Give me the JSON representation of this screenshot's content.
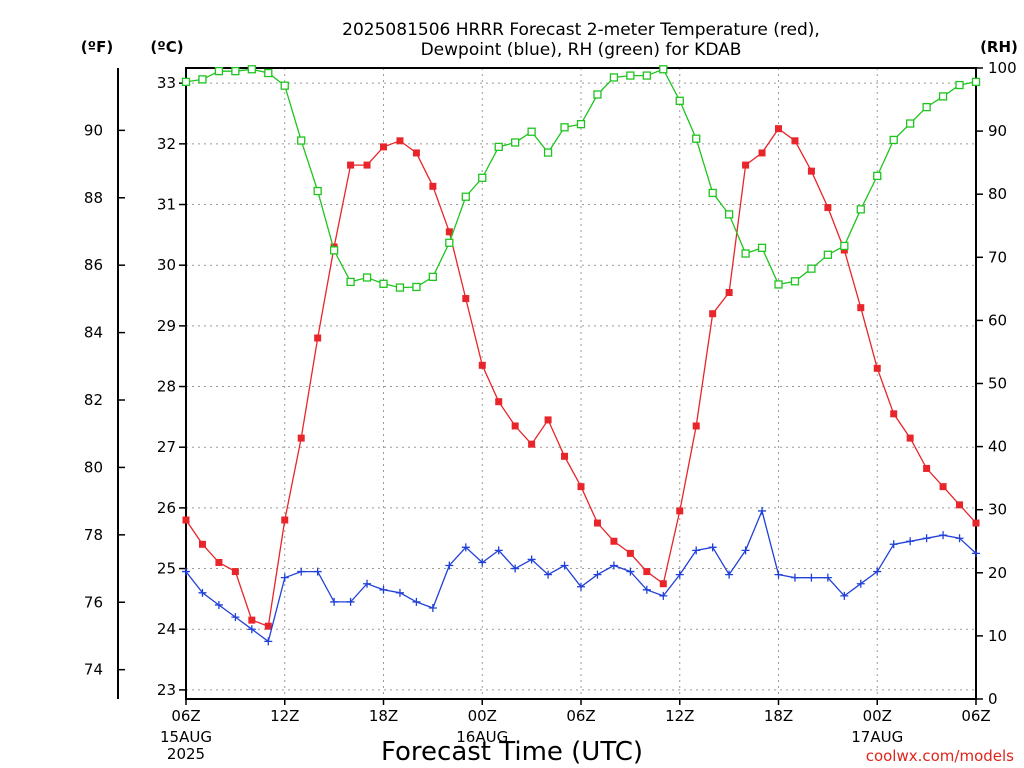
{
  "title_line1": "2025081506 HRRR Forecast 2-meter Temperature (red),",
  "title_line2": "Dewpoint (blue), RH (green) for KDAB",
  "unit_f": "(ºF)",
  "unit_c": "(ºC)",
  "unit_rh": "(RH)",
  "xlabel": "Forecast Time (UTC)",
  "credit": "coolwx.com/models",
  "chart_data": {
    "type": "line",
    "xlabel": "Forecast Time (UTC)",
    "x_unit": "forecast hour from 2025-08-15 06Z",
    "x": [
      0,
      1,
      2,
      3,
      4,
      5,
      6,
      7,
      8,
      9,
      10,
      11,
      12,
      13,
      14,
      15,
      16,
      17,
      18,
      19,
      20,
      21,
      22,
      23,
      24,
      25,
      26,
      27,
      28,
      29,
      30,
      31,
      32,
      33,
      34,
      35,
      36,
      37,
      38,
      39,
      40,
      41,
      42,
      43,
      44,
      45,
      46,
      47,
      48
    ],
    "x_ticks": [
      {
        "hour": 0,
        "label": "06Z",
        "sub": [
          "15AUG",
          "2025"
        ]
      },
      {
        "hour": 6,
        "label": "12Z"
      },
      {
        "hour": 12,
        "label": "18Z"
      },
      {
        "hour": 18,
        "label": "00Z",
        "sub": [
          "16AUG"
        ]
      },
      {
        "hour": 24,
        "label": "06Z"
      },
      {
        "hour": 30,
        "label": "12Z"
      },
      {
        "hour": 36,
        "label": "18Z"
      },
      {
        "hour": 42,
        "label": "00Z",
        "sub": [
          "17AUG"
        ]
      },
      {
        "hour": 48,
        "label": "06Z"
      }
    ],
    "y_left_celsius": {
      "range": [
        22.85,
        33.25
      ],
      "ticks": [
        23,
        24,
        25,
        26,
        27,
        28,
        29,
        30,
        31,
        32,
        33
      ]
    },
    "y_left_fahrenheit": {
      "ticks": [
        74,
        76,
        78,
        80,
        82,
        84,
        86,
        88,
        90
      ]
    },
    "y_right_rh": {
      "range": [
        0,
        100
      ],
      "ticks": [
        0,
        10,
        20,
        30,
        40,
        50,
        60,
        70,
        80,
        90,
        100
      ]
    },
    "grid": true,
    "series": [
      {
        "name": "Temperature",
        "color": "#e8252a",
        "marker": "filled-square",
        "axis": "celsius",
        "values": [
          25.8,
          25.4,
          25.1,
          24.95,
          24.15,
          24.05,
          25.8,
          27.15,
          28.8,
          30.3,
          31.65,
          31.65,
          31.95,
          32.05,
          31.85,
          31.3,
          30.55,
          29.45,
          28.35,
          27.75,
          27.35,
          27.05,
          27.45,
          26.85,
          26.35,
          25.75,
          25.45,
          25.25,
          24.95,
          24.75,
          25.95,
          27.35,
          29.2,
          29.55,
          31.65,
          31.85,
          32.25,
          32.05,
          31.55,
          30.95,
          30.25,
          29.3,
          28.3,
          27.55,
          27.15,
          26.65,
          26.35,
          26.05,
          25.75
        ]
      },
      {
        "name": "Dewpoint",
        "color": "#2140d8",
        "marker": "plus",
        "axis": "celsius",
        "values": [
          24.95,
          24.6,
          24.4,
          24.2,
          24.0,
          23.8,
          24.85,
          24.95,
          24.95,
          24.45,
          24.45,
          24.75,
          24.65,
          24.6,
          24.45,
          24.35,
          25.05,
          25.35,
          25.1,
          25.3,
          25.0,
          25.15,
          24.9,
          25.05,
          24.7,
          24.9,
          25.05,
          24.95,
          24.65,
          24.55,
          24.9,
          25.3,
          25.35,
          24.9,
          25.3,
          25.95,
          24.9,
          24.85,
          24.85,
          24.85,
          24.55,
          24.75,
          24.95,
          25.4,
          25.45,
          25.5,
          25.55,
          25.5,
          25.25
        ]
      },
      {
        "name": "RH",
        "color": "#1fc41f",
        "marker": "open-square",
        "axis": "rh",
        "values": [
          97.8,
          98.2,
          99.5,
          99.5,
          99.8,
          99.2,
          97.2,
          88.5,
          80.5,
          71.1,
          66.1,
          66.8,
          65.8,
          65.2,
          65.3,
          66.9,
          72.3,
          79.6,
          82.6,
          87.5,
          88.2,
          89.9,
          86.6,
          90.6,
          91.1,
          95.8,
          98.5,
          98.8,
          98.8,
          99.8,
          94.8,
          88.8,
          80.2,
          76.8,
          70.6,
          71.5,
          65.7,
          66.2,
          68.2,
          70.4,
          71.8,
          77.6,
          82.9,
          88.6,
          91.2,
          93.8,
          95.5,
          97.3,
          97.8
        ]
      }
    ]
  }
}
